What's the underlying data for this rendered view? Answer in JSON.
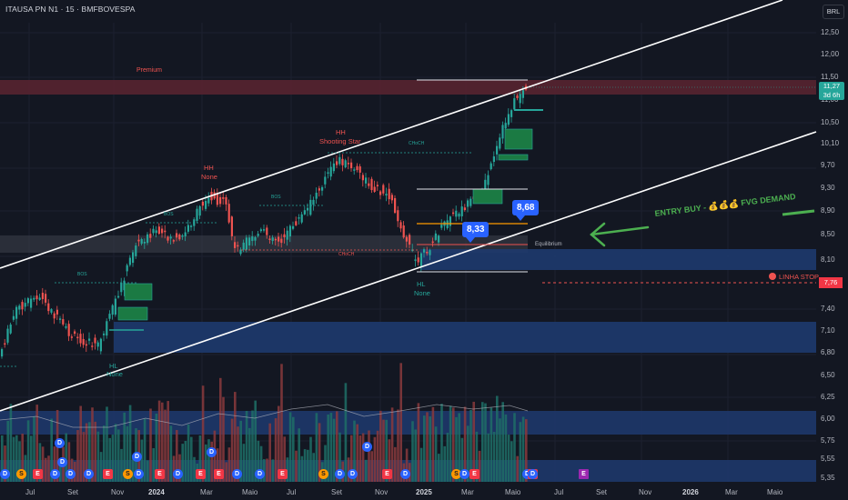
{
  "header": {
    "symbol_title": "ITAUSA PN N1 · 15 · BMFBOVESPA",
    "currency_label": "BRL"
  },
  "y_axis": {
    "labels": [
      "12,50",
      "12,00",
      "11,50",
      "11,00",
      "10,50",
      "10,10",
      "9,70",
      "9,30",
      "8,90",
      "8,50",
      "8,10",
      "7,40",
      "7,10",
      "6,80",
      "6,50",
      "6,25",
      "6,00",
      "5,75",
      "5,55",
      "5,35"
    ]
  },
  "x_axis": {
    "labels": [
      {
        "text": "Jul",
        "year": false
      },
      {
        "text": "Set",
        "year": false
      },
      {
        "text": "Nov",
        "year": false
      },
      {
        "text": "2024",
        "year": true
      },
      {
        "text": "Mar",
        "year": false
      },
      {
        "text": "Maio",
        "year": false
      },
      {
        "text": "Jul",
        "year": false
      },
      {
        "text": "Set",
        "year": false
      },
      {
        "text": "Nov",
        "year": false
      },
      {
        "text": "2025",
        "year": true
      },
      {
        "text": "Mar",
        "year": false
      },
      {
        "text": "Maio",
        "year": false
      },
      {
        "text": "Jul",
        "year": false
      },
      {
        "text": "Set",
        "year": false
      },
      {
        "text": "Nov",
        "year": false
      },
      {
        "text": "2026",
        "year": true
      },
      {
        "text": "Mar",
        "year": false
      },
      {
        "text": "Maio",
        "year": false
      }
    ]
  },
  "price_badge": {
    "price": "11,27",
    "countdown": "3d 6h"
  },
  "stop_badge": "7,76",
  "bubbles": {
    "low": "8,33",
    "high": "8,68"
  },
  "annotations": {
    "premium": "Premium",
    "hh_left": "HH",
    "hh_left_sub": "None",
    "hh_mid": "HH",
    "hh_mid_sub": "Shooting Star",
    "hl_right": "HL",
    "hl_right_sub": "None",
    "hl_left": "HL",
    "hl_left_sub": "None",
    "equilibrium": "Equilibrium",
    "bos": "BOS",
    "choch": "CHoCH",
    "entry": "ENTRY BUY - 💰💰💰 FVG DEMAND",
    "stop": "LINHA STOP"
  },
  "events": [
    "D",
    "S",
    "E",
    "D",
    "D",
    "D",
    "E",
    "S",
    "D",
    "E",
    "D",
    "E",
    "E",
    "D",
    "D",
    "E",
    "S",
    "D",
    "D",
    "E",
    "D",
    "S",
    "D",
    "E",
    "D",
    "E"
  ],
  "colors": {
    "up": "#26a69a",
    "down": "#ef5350",
    "accent": "#2962ff",
    "zone_blue": "#1e3a6e",
    "zone_red": "#5c2430"
  }
}
